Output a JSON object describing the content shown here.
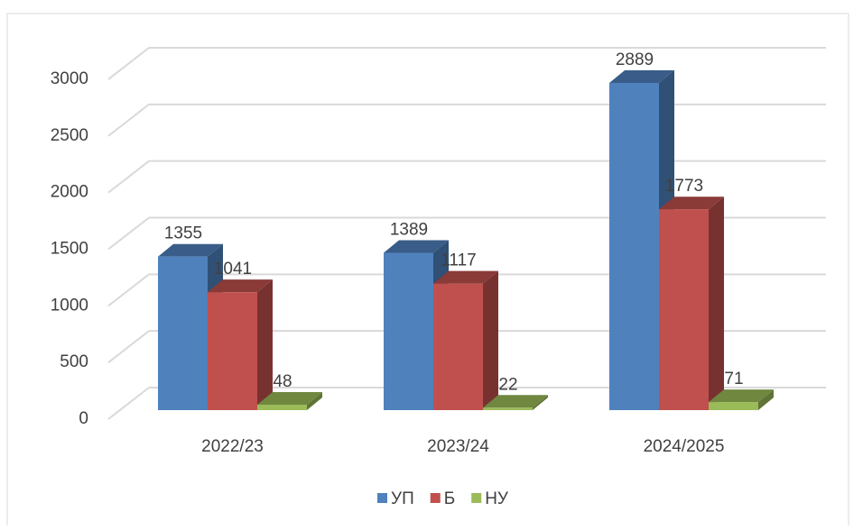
{
  "chart_data": {
    "type": "bar3d",
    "categories": [
      "2022/23",
      "2023/24",
      "2024/2025"
    ],
    "series": [
      {
        "name": "УП",
        "color": "#4f81bd",
        "values": [
          1355,
          1389,
          2889
        ]
      },
      {
        "name": "Б",
        "color": "#c0504d",
        "values": [
          1041,
          1117,
          1773
        ]
      },
      {
        "name": "НУ",
        "color": "#9bbb59",
        "values": [
          48,
          22,
          71
        ]
      }
    ],
    "ylim": [
      0,
      3000
    ],
    "yticks": [
      0,
      500,
      1000,
      1500,
      2000,
      2500,
      3000
    ],
    "grid": true,
    "legend": "bottom"
  }
}
